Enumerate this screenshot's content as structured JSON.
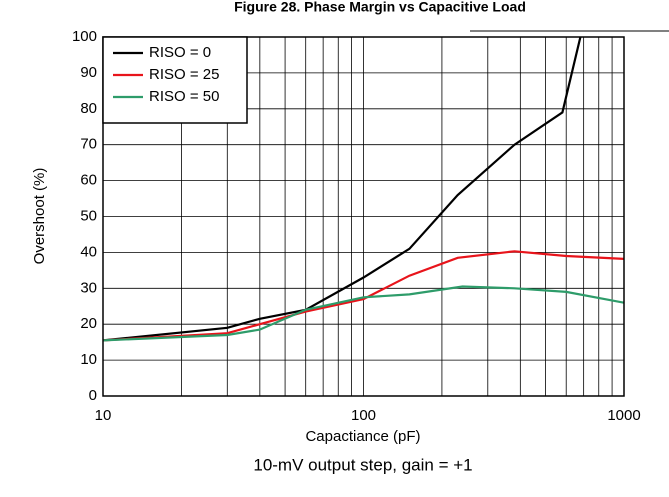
{
  "chart_data": {
    "type": "line",
    "title": "Figure 28. Phase Margin vs Capacitive Load",
    "xlabel": "Capactiance (pF)",
    "ylabel": "Overshoot (%)",
    "caption": "10-mV output step, gain = +1",
    "xscale": "log",
    "xlim": [
      10,
      1000
    ],
    "xticks": [
      10,
      100,
      1000
    ],
    "xminorticks": [
      20,
      30,
      40,
      50,
      60,
      70,
      80,
      90,
      200,
      300,
      400,
      500,
      600,
      700,
      800,
      900
    ],
    "ylim": [
      0,
      100
    ],
    "yticks": [
      0,
      10,
      20,
      30,
      40,
      50,
      60,
      70,
      80,
      90,
      100
    ],
    "grid": true,
    "legend": "upper left",
    "series": [
      {
        "name": "RISO = 0",
        "color": "#000000",
        "x": [
          10,
          30,
          40,
          60,
          100,
          150,
          230,
          380,
          580,
          680
        ],
        "values": [
          15.5,
          19,
          21.5,
          24,
          33,
          41,
          56,
          70,
          79,
          100
        ]
      },
      {
        "name": "RISO = 25",
        "color": "#e8141b",
        "x": [
          10,
          30,
          40,
          60,
          100,
          150,
          230,
          380,
          600,
          1000
        ],
        "values": [
          15.5,
          17.5,
          20,
          23.5,
          27,
          33.5,
          38.5,
          40.3,
          39,
          38.2
        ]
      },
      {
        "name": "RISO = 50",
        "color": "#2e9c6a",
        "x": [
          10,
          30,
          40,
          60,
          100,
          150,
          240,
          380,
          600,
          1000
        ],
        "values": [
          15.5,
          17,
          18.5,
          24,
          27.5,
          28.3,
          30.5,
          30,
          29,
          26
        ]
      }
    ]
  }
}
